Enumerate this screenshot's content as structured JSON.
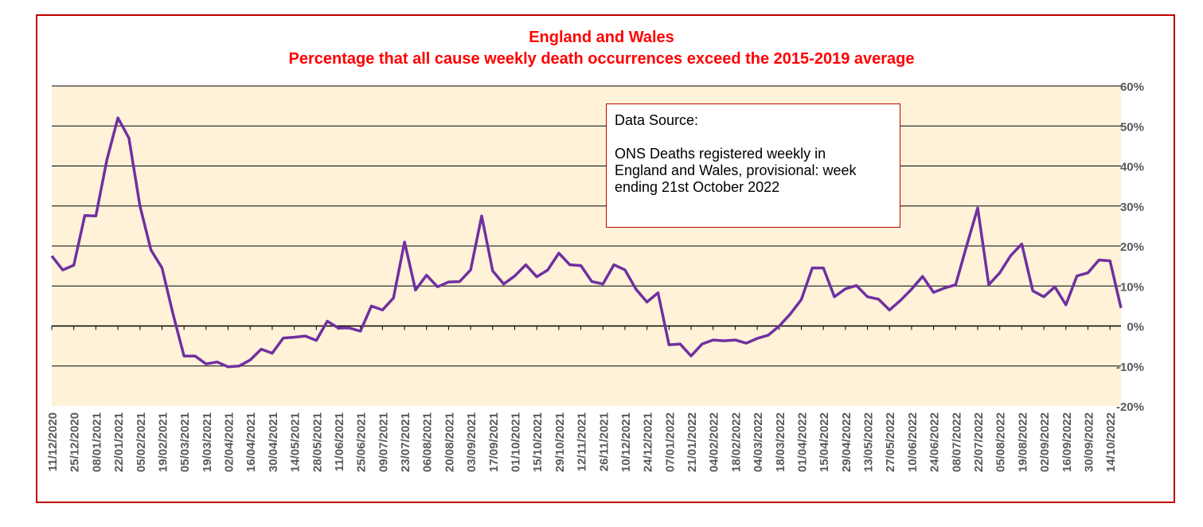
{
  "chart_data": {
    "type": "line",
    "title": "England and Wales",
    "subtitle": "Percentage that all cause weekly death occurrences exceed the 2015-2019 average",
    "xlabel": "",
    "ylabel": "",
    "ylim": [
      -20,
      60
    ],
    "y_ticks": [
      -20,
      -10,
      0,
      10,
      20,
      30,
      40,
      50,
      60
    ],
    "y_tick_labels": [
      "-20%",
      "-10%",
      "0%",
      "10%",
      "20%",
      "30%",
      "40%",
      "50%",
      "60%"
    ],
    "y_axis_side": "right",
    "grid": true,
    "x_tick_labels": [
      "11/12/2020",
      "25/12/2020",
      "08/01/2021",
      "22/01/2021",
      "05/02/2021",
      "19/02/2021",
      "05/03/2021",
      "19/03/2021",
      "02/04/2021",
      "16/04/2021",
      "30/04/2021",
      "14/05/2021",
      "28/05/2021",
      "11/06/2021",
      "25/06/2021",
      "09/07/2021",
      "23/07/2021",
      "06/08/2021",
      "20/08/2021",
      "03/09/2021",
      "17/09/2021",
      "01/10/2021",
      "15/10/2021",
      "29/10/2021",
      "12/11/2021",
      "26/11/2021",
      "10/12/2021",
      "24/12/2021",
      "07/01/2022",
      "21/01/2022",
      "04/02/2022",
      "18/02/2022",
      "04/03/2022",
      "18/03/2022",
      "01/04/2022",
      "15/04/2022",
      "29/04/2022",
      "13/05/2022",
      "27/05/2022",
      "10/06/2022",
      "24/06/2022",
      "08/07/2022",
      "22/07/2022",
      "05/08/2022",
      "19/08/2022",
      "02/09/2022",
      "16/09/2022",
      "30/09/2022",
      "14/10/2022"
    ],
    "series": [
      {
        "color": "#7030a0",
        "values": [
          17.5,
          14,
          15.2,
          27.6,
          27.5,
          41.5,
          52,
          47,
          30,
          19,
          14.5,
          3,
          -7.5,
          -7.5,
          -9.5,
          -9,
          -10.2,
          -10,
          -8.5,
          -5.8,
          -6.8,
          -3,
          -2.8,
          -2.5,
          -3.6,
          1.2,
          -0.5,
          -0.5,
          -1.3,
          5,
          4,
          7,
          21,
          9,
          12.7,
          9.8,
          11,
          11.1,
          14,
          27.5,
          13.8,
          10.5,
          12.5,
          15.3,
          12.3,
          14,
          18.2,
          15.3,
          15.1,
          11.1,
          10.5,
          15.3,
          14,
          9.2,
          6,
          8.3,
          -4.7,
          -4.5,
          -7.5,
          -4.5,
          -3.5,
          -3.7,
          -3.5,
          -4.3,
          -3.1,
          -2.3,
          0,
          3,
          6.6,
          14.5,
          14.5,
          7.3,
          9.3,
          10.1,
          7.3,
          6.7,
          4,
          6.4,
          9.2,
          12.4,
          8.4,
          9.5,
          10.3,
          20.1,
          29.5,
          10.3,
          13.3,
          17.6,
          20.5,
          8.8,
          7.3,
          9.8,
          5.3,
          12.5,
          13.3,
          16.5,
          16.3,
          4.5
        ]
      }
    ],
    "colors": {
      "plot_background": "#fff2d9",
      "gridline": "#000000",
      "frame": "#c00000",
      "title": "#ff0000",
      "line": "#7030a0"
    }
  },
  "source_box": {
    "heading": "Data Source:",
    "lines": [
      "ONS Deaths registered weekly in",
      "England and Wales, provisional: week",
      "ending 21st October 2022"
    ]
  }
}
